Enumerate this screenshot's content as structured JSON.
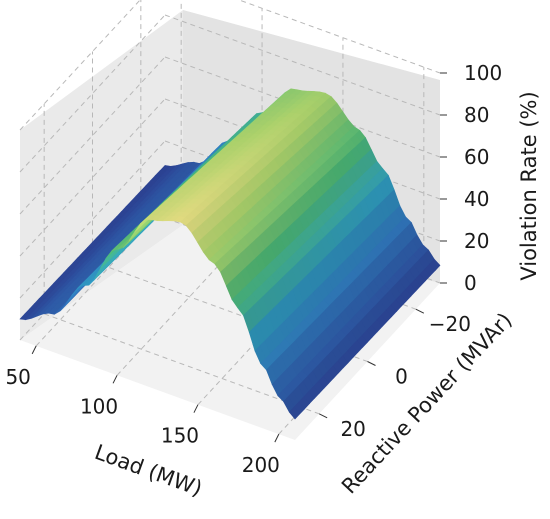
{
  "chart_data": {
    "type": "surface",
    "xlabel": "Load (MW)",
    "ylabel": "Reactive Power (MVAr)",
    "zlabel": "Violation Rate (%)",
    "x_ticks": [
      "50",
      "100",
      "150",
      "200"
    ],
    "y_ticks": [
      "−20",
      "0",
      "20"
    ],
    "z_ticks": [
      "0",
      "20",
      "40",
      "60",
      "80",
      "100"
    ],
    "xlim": [
      40,
      210
    ],
    "ylim": [
      -30,
      30
    ],
    "zlim": [
      0,
      100
    ],
    "grid": true,
    "colormap": [
      "#2b3f8f",
      "#2f6fb5",
      "#2f9bbf",
      "#4ab373",
      "#a9cf6a",
      "#f3dc86"
    ],
    "surface_profile": {
      "x_at_ymax": [
        [
          40,
          10
        ],
        [
          60,
          18
        ],
        [
          80,
          37
        ],
        [
          100,
          60
        ],
        [
          120,
          80
        ],
        [
          140,
          84
        ],
        [
          160,
          70
        ],
        [
          175,
          53
        ],
        [
          190,
          30
        ],
        [
          200,
          18
        ],
        [
          210,
          10
        ]
      ],
      "y_factor_at_ymin": 0.84
    }
  }
}
